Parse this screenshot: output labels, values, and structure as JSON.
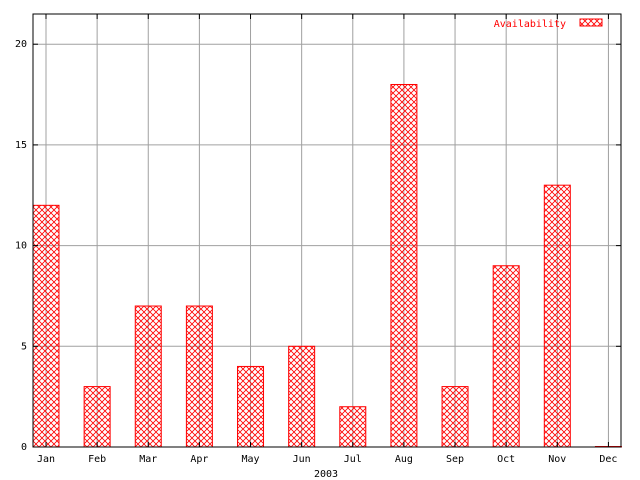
{
  "chart_data": {
    "type": "bar",
    "categories": [
      "Jan",
      "Feb",
      "Mar",
      "Apr",
      "May",
      "Jun",
      "Jul",
      "Aug",
      "Sep",
      "Oct",
      "Nov",
      "Dec"
    ],
    "series": [
      {
        "name": "Availability",
        "values": [
          12,
          3,
          7,
          7,
          4,
          5,
          2,
          18,
          3,
          9,
          13,
          0
        ]
      }
    ],
    "xlabel": "2003",
    "ylabel": "",
    "ylim": [
      0,
      21.5
    ],
    "yticks": [
      0,
      5,
      10,
      15,
      20
    ],
    "grid": true,
    "legend_position": "top-right",
    "colors": {
      "bar": "#ff0000",
      "grid": "#a0a0a0",
      "axis": "#000000"
    }
  }
}
